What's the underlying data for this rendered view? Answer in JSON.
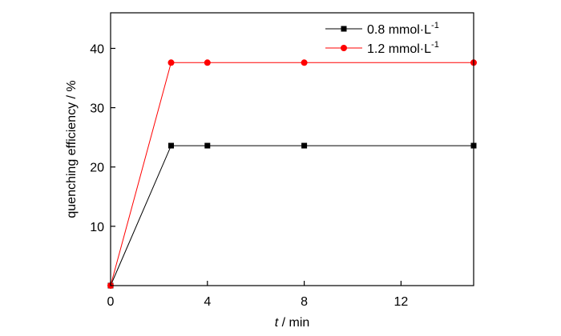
{
  "chart_data": {
    "type": "line",
    "xlabel_italic": "t",
    "xlabel_rest": " / min",
    "ylabel": "quenching efficiency / %",
    "xlim": [
      0,
      15
    ],
    "ylim": [
      0,
      46
    ],
    "xticks": [
      0,
      4,
      8,
      12
    ],
    "yticks": [
      10,
      20,
      30,
      40
    ],
    "grid": false,
    "legend_position": "top-right",
    "series": [
      {
        "name_main": "0.8  mmol·L",
        "name_sup": "-1",
        "color": "#000000",
        "marker": "square",
        "x": [
          0,
          2.5,
          4,
          8,
          15
        ],
        "y": [
          0,
          23.6,
          23.6,
          23.6,
          23.6
        ]
      },
      {
        "name_main": "1.2  mmol·L",
        "name_sup": "-1",
        "color": "#ff0000",
        "marker": "circle",
        "x": [
          0,
          2.5,
          4,
          8,
          15
        ],
        "y": [
          0,
          37.6,
          37.6,
          37.6,
          37.6
        ]
      }
    ]
  }
}
